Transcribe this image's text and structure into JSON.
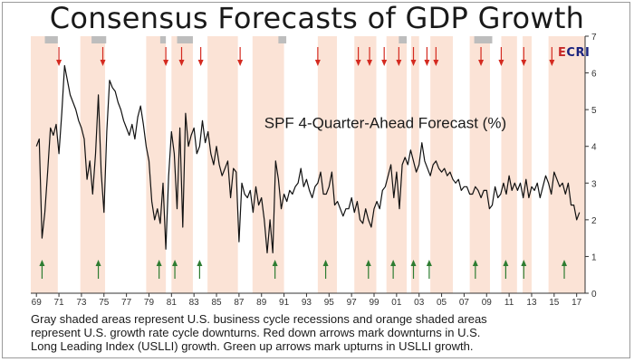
{
  "title": "Consensus Forecasts of GDP Growth",
  "logo": "ECRI",
  "caption_lines": [
    "Gray shaded areas represent U.S. business cycle recessions and orange shaded areas",
    "represent U.S. growth rate cycle downturns. Red down arrows mark downturns in U.S.",
    "Long Leading Index (USLLI) growth. Green up arrows mark upturns in USLLI growth."
  ],
  "colors": {
    "recession": "#bdbdbd",
    "downturn": "#fbe3d6",
    "line": "#111111",
    "down_arrow": "#d42a20",
    "up_arrow": "#2e7d32"
  },
  "chart_data": {
    "type": "line",
    "title": "",
    "xlabel": "",
    "ylabel": "",
    "series": [
      {
        "name": "SPF 4-Quarter-Ahead Forecast (%)",
        "x": [
          1969.0,
          1969.25,
          1969.5,
          1969.75,
          1970.0,
          1970.25,
          1970.5,
          1970.75,
          1971.0,
          1971.25,
          1971.5,
          1971.75,
          1972.0,
          1972.25,
          1972.5,
          1972.75,
          1973.0,
          1973.25,
          1973.5,
          1973.75,
          1974.0,
          1974.25,
          1974.5,
          1974.75,
          1975.0,
          1975.25,
          1975.5,
          1975.75,
          1976.0,
          1976.25,
          1976.5,
          1976.75,
          1977.0,
          1977.25,
          1977.5,
          1977.75,
          1978.0,
          1978.25,
          1978.5,
          1978.75,
          1979.0,
          1979.25,
          1979.5,
          1979.75,
          1980.0,
          1980.25,
          1980.5,
          1980.75,
          1981.0,
          1981.25,
          1981.5,
          1981.75,
          1982.0,
          1982.25,
          1982.5,
          1982.75,
          1983.0,
          1983.25,
          1983.5,
          1983.75,
          1984.0,
          1984.25,
          1984.5,
          1984.75,
          1985.0,
          1985.25,
          1985.5,
          1985.75,
          1986.0,
          1986.25,
          1986.5,
          1986.75,
          1987.0,
          1987.25,
          1987.5,
          1987.75,
          1988.0,
          1988.25,
          1988.5,
          1988.75,
          1989.0,
          1989.25,
          1989.5,
          1989.75,
          1990.0,
          1990.25,
          1990.5,
          1990.75,
          1991.0,
          1991.25,
          1991.5,
          1991.75,
          1992.0,
          1992.25,
          1992.5,
          1992.75,
          1993.0,
          1993.25,
          1993.5,
          1993.75,
          1994.0,
          1994.25,
          1994.5,
          1994.75,
          1995.0,
          1995.25,
          1995.5,
          1995.75,
          1996.0,
          1996.25,
          1996.5,
          1996.75,
          1997.0,
          1997.25,
          1997.5,
          1997.75,
          1998.0,
          1998.25,
          1998.5,
          1998.75,
          1999.0,
          1999.25,
          1999.5,
          1999.75,
          2000.0,
          2000.25,
          2000.5,
          2000.75,
          2001.0,
          2001.25,
          2001.5,
          2001.75,
          2002.0,
          2002.25,
          2002.5,
          2002.75,
          2003.0,
          2003.25,
          2003.5,
          2003.75,
          2004.0,
          2004.25,
          2004.5,
          2004.75,
          2005.0,
          2005.25,
          2005.5,
          2005.75,
          2006.0,
          2006.25,
          2006.5,
          2006.75,
          2007.0,
          2007.25,
          2007.5,
          2007.75,
          2008.0,
          2008.25,
          2008.5,
          2008.75,
          2009.0,
          2009.25,
          2009.5,
          2009.75,
          2010.0,
          2010.25,
          2010.5,
          2010.75,
          2011.0,
          2011.25,
          2011.5,
          2011.75,
          2012.0,
          2012.25,
          2012.5,
          2012.75,
          2013.0,
          2013.25,
          2013.5,
          2013.75,
          2014.0,
          2014.25,
          2014.5,
          2014.75,
          2015.0,
          2015.25,
          2015.5,
          2015.75,
          2016.0,
          2016.25,
          2016.5,
          2016.75,
          2017.0,
          2017.25
        ],
        "values": [
          4.0,
          4.2,
          1.5,
          2.2,
          3.3,
          4.5,
          4.3,
          4.6,
          3.8,
          4.9,
          6.2,
          5.8,
          5.4,
          5.2,
          5.0,
          4.7,
          4.5,
          4.2,
          3.1,
          3.6,
          2.7,
          3.8,
          5.4,
          3.3,
          2.2,
          4.4,
          5.8,
          5.6,
          5.5,
          5.2,
          5.0,
          4.7,
          4.5,
          4.3,
          4.6,
          4.2,
          4.8,
          5.1,
          4.6,
          4.0,
          3.6,
          2.5,
          2.0,
          2.3,
          1.9,
          3.0,
          1.2,
          3.2,
          4.4,
          3.8,
          2.3,
          4.5,
          1.8,
          4.9,
          4.0,
          4.3,
          4.5,
          3.8,
          4.0,
          4.7,
          4.1,
          4.4,
          3.8,
          3.5,
          4.0,
          3.5,
          3.2,
          3.4,
          3.6,
          2.6,
          3.4,
          3.3,
          1.4,
          3.0,
          2.7,
          2.6,
          2.8,
          2.2,
          2.9,
          2.4,
          2.6,
          2.0,
          1.1,
          2.0,
          1.1,
          3.6,
          3.1,
          2.3,
          2.7,
          2.5,
          2.8,
          2.7,
          2.9,
          3.0,
          3.4,
          2.9,
          3.1,
          2.8,
          2.6,
          2.9,
          3.0,
          3.3,
          2.7,
          2.7,
          2.9,
          3.3,
          2.4,
          2.5,
          2.3,
          2.1,
          2.3,
          2.3,
          2.6,
          2.2,
          2.5,
          2.0,
          1.9,
          2.3,
          2.0,
          1.8,
          2.3,
          2.5,
          2.3,
          2.8,
          2.9,
          3.2,
          3.5,
          2.6,
          3.3,
          2.3,
          3.5,
          3.7,
          3.5,
          3.9,
          3.6,
          3.3,
          3.5,
          4.1,
          3.6,
          3.4,
          3.2,
          3.5,
          3.6,
          3.4,
          3.3,
          3.4,
          3.2,
          3.3,
          3.1,
          3.0,
          3.1,
          2.8,
          2.9,
          2.9,
          2.7,
          2.7,
          2.9,
          2.8,
          2.6,
          2.8,
          2.8,
          2.3,
          2.4,
          2.9,
          2.6,
          2.7,
          3.0,
          2.7,
          3.2,
          2.8,
          3.0,
          2.8,
          3.0,
          2.6,
          3.1,
          2.6,
          2.9,
          2.8,
          3.0,
          2.6,
          2.9,
          3.2,
          3.0,
          2.7,
          3.3,
          3.1,
          2.9,
          3.0,
          2.7,
          3.0,
          2.4,
          2.4,
          2.0,
          2.2
        ]
      }
    ],
    "xlim": [
      1968.5,
      2017.75
    ],
    "ylim": [
      0,
      7
    ],
    "y_ticks": [
      0,
      1,
      2,
      3,
      4,
      5,
      6,
      7
    ],
    "x_ticks": [
      1969,
      1971,
      1973,
      1975,
      1977,
      1979,
      1981,
      1983,
      1985,
      1987,
      1989,
      1991,
      1993,
      1995,
      1997,
      1999,
      2001,
      2003,
      2005,
      2007,
      2009,
      2011,
      2013,
      2015,
      2017
    ],
    "x_tick_labels": [
      "69",
      "71",
      "73",
      "75",
      "77",
      "79",
      "81",
      "83",
      "85",
      "87",
      "89",
      "91",
      "93",
      "95",
      "97",
      "99",
      "01",
      "03",
      "05",
      "07",
      "09",
      "11",
      "13",
      "15",
      "17"
    ],
    "y_axis_side": "right",
    "grid": false,
    "recessions": [
      [
        1969.75,
        1970.9
      ],
      [
        1973.9,
        1975.2
      ],
      [
        1980.0,
        1980.5
      ],
      [
        1981.5,
        1982.9
      ],
      [
        1990.5,
        1991.2
      ],
      [
        2001.2,
        2001.9
      ],
      [
        2007.9,
        2009.5
      ]
    ],
    "downturns": [
      [
        1968.5,
        1970.9
      ],
      [
        1972.9,
        1975.1
      ],
      [
        1978.75,
        1980.5
      ],
      [
        1981.0,
        1982.9
      ],
      [
        1984.2,
        1986.9
      ],
      [
        1988.2,
        1991.0
      ],
      [
        1994.0,
        1995.7
      ],
      [
        1997.25,
        1999.2
      ],
      [
        2000.1,
        2001.9
      ],
      [
        2002.3,
        2003.0
      ],
      [
        2004.0,
        2006.0
      ],
      [
        2007.5,
        2009.3
      ],
      [
        2010.3,
        2011.7
      ],
      [
        2012.2,
        2013.0
      ],
      [
        2014.5,
        2017.75
      ]
    ],
    "down_arrows": [
      1971.0,
      1974.9,
      1980.5,
      1981.9,
      1983.6,
      1987.1,
      1994.0,
      1997.6,
      1998.6,
      1999.9,
      2001.2,
      2002.5,
      2003.7,
      2004.5,
      2008.5,
      2010.3,
      2012.3,
      2014.8
    ],
    "up_arrows": [
      1969.5,
      1974.5,
      1979.9,
      1981.3,
      1983.5,
      1990.2,
      1994.7,
      1998.5,
      2000.7,
      2002.5,
      2003.9,
      2008.0,
      2010.7,
      2012.3,
      2015.9
    ],
    "annotations": [
      {
        "text": "SPF 4-Quarter-Ahead Forecast (%)",
        "x": 2000,
        "y": 4.5
      }
    ]
  }
}
